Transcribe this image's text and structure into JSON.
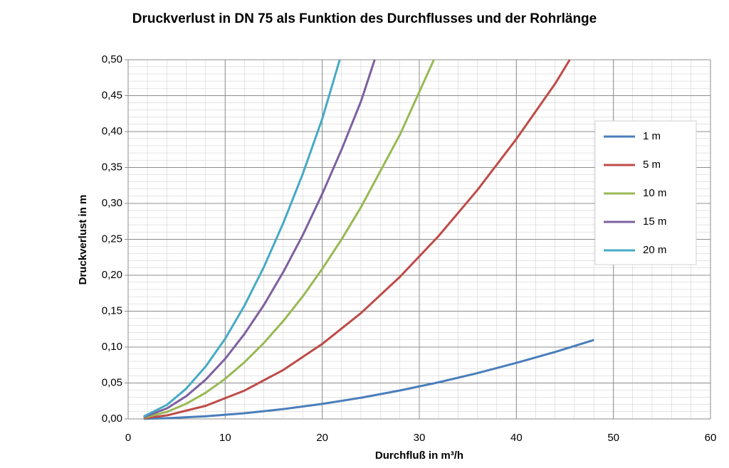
{
  "chart_data": {
    "type": "line",
    "title": "Druckverlust in DN 75 als Funktion des Durchflusses und der Rohrlänge",
    "x_label": "Durchfluß in m³/h",
    "y_label": "Druckverlust in m",
    "xlim": [
      0,
      60
    ],
    "xticks": [
      0,
      10,
      20,
      30,
      40,
      50,
      60
    ],
    "ylim": [
      0,
      0.5
    ],
    "yticks": [
      {
        "value": 0,
        "label": "0,00"
      },
      {
        "value": 0.05,
        "label": "0,05"
      },
      {
        "value": 0.1,
        "label": "0,10"
      },
      {
        "value": 0.15,
        "label": "0,15"
      },
      {
        "value": 0.2,
        "label": "0,20"
      },
      {
        "value": 0.25,
        "label": "0,25"
      },
      {
        "value": 0.3,
        "label": "0,30"
      },
      {
        "value": 0.35,
        "label": "0,35"
      },
      {
        "value": 0.4,
        "label": "0,40"
      },
      {
        "value": 0.45,
        "label": "0,45"
      },
      {
        "value": 0.5,
        "label": "0,50"
      }
    ],
    "grid": true,
    "legend": "right",
    "series": [
      {
        "name": "1 m",
        "color": "#4a7ebb",
        "x": [
          1.6,
          4,
          8,
          12,
          16,
          20,
          24,
          28,
          32,
          36,
          40,
          44,
          48
        ],
        "values": [
          0.0002,
          0.001,
          0.0037,
          0.0079,
          0.0137,
          0.0209,
          0.0295,
          0.0396,
          0.051,
          0.0638,
          0.078,
          0.0933,
          0.11
        ]
      },
      {
        "name": "5 m",
        "color": "#be4b48",
        "x": [
          1.6,
          4,
          8,
          12,
          16,
          20,
          24,
          28,
          32,
          36,
          40,
          44,
          45.5
        ],
        "values": [
          0.0009,
          0.0049,
          0.0183,
          0.0395,
          0.0683,
          0.1044,
          0.1475,
          0.1978,
          0.2548,
          0.3189,
          0.3897,
          0.4668,
          0.5
        ]
      },
      {
        "name": "10 m",
        "color": "#98b954",
        "x": [
          1.6,
          4,
          6,
          8,
          10,
          12,
          14,
          16,
          18,
          20,
          22,
          24,
          28,
          31.5
        ],
        "values": [
          0.0017,
          0.0098,
          0.0212,
          0.0366,
          0.0559,
          0.0791,
          0.106,
          0.1366,
          0.1707,
          0.2089,
          0.2502,
          0.295,
          0.3956,
          0.5
        ]
      },
      {
        "name": "15 m",
        "color": "#7d60a0",
        "x": [
          1.6,
          4,
          6,
          8,
          10,
          12,
          14,
          16,
          18,
          20,
          22,
          24,
          25.4
        ],
        "values": [
          0.0026,
          0.0147,
          0.0318,
          0.0549,
          0.0838,
          0.1186,
          0.1589,
          0.2049,
          0.2561,
          0.3133,
          0.3753,
          0.4425,
          0.5
        ]
      },
      {
        "name": "20 m",
        "color": "#46aac5",
        "x": [
          1.6,
          4,
          6,
          8,
          10,
          12,
          14,
          16,
          18,
          20,
          21.8
        ],
        "values": [
          0.0034,
          0.0196,
          0.0424,
          0.0732,
          0.1118,
          0.1581,
          0.2119,
          0.2732,
          0.3414,
          0.4178,
          0.5
        ]
      }
    ]
  }
}
